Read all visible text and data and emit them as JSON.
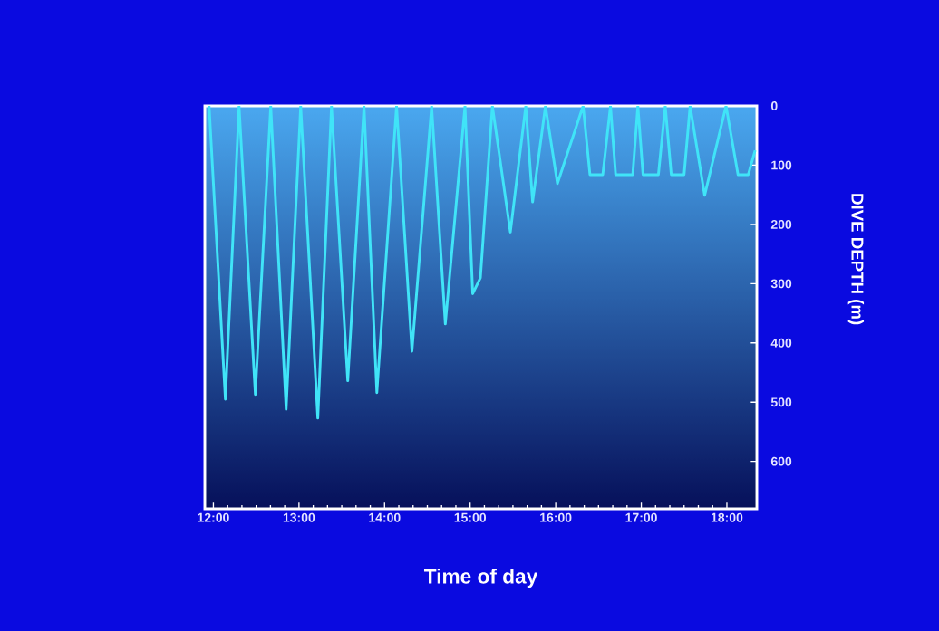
{
  "chart_data": {
    "type": "line",
    "xlabel": "Time of day",
    "ylabel": "DIVE DEPTH (m)",
    "x": [
      11.95,
      12.14,
      12.3,
      12.49,
      12.67,
      12.85,
      13.02,
      13.22,
      13.38,
      13.57,
      13.76,
      13.91,
      14.14,
      14.32,
      14.55,
      14.71,
      14.94,
      15.03,
      15.12,
      15.26,
      15.47,
      15.65,
      15.73,
      15.88,
      16.02,
      16.32,
      16.4,
      16.55,
      16.64,
      16.7,
      16.9,
      16.96,
      17.02,
      17.2,
      17.28,
      17.35,
      17.5,
      17.57,
      17.74,
      17.99,
      18.13,
      18.25,
      18.33
    ],
    "series": [
      {
        "color": "#40e4f8",
        "values": [
          0,
          495,
          0,
          487,
          0,
          512,
          0,
          527,
          0,
          464,
          0,
          484,
          0,
          414,
          0,
          368,
          0,
          317,
          290,
          0,
          213,
          0,
          162,
          0,
          131,
          0,
          116,
          116,
          0,
          116,
          116,
          0,
          116,
          116,
          0,
          116,
          116,
          0,
          151,
          0,
          116,
          116,
          75
        ]
      }
    ],
    "xlim": [
      11.9,
      18.35
    ],
    "ylim": [
      680,
      0
    ],
    "xticks": [
      {
        "value": 12,
        "label": "12:00"
      },
      {
        "value": 13,
        "label": "13:00"
      },
      {
        "value": 14,
        "label": "14:00"
      },
      {
        "value": 15,
        "label": "15:00"
      },
      {
        "value": 16,
        "label": "16:00"
      },
      {
        "value": 17,
        "label": "17:00"
      },
      {
        "value": 18,
        "label": "18:00"
      }
    ],
    "yticks": [
      0,
      100,
      200,
      300,
      400,
      500,
      600
    ],
    "grid": false,
    "marker": "none",
    "line_style": "solid"
  }
}
